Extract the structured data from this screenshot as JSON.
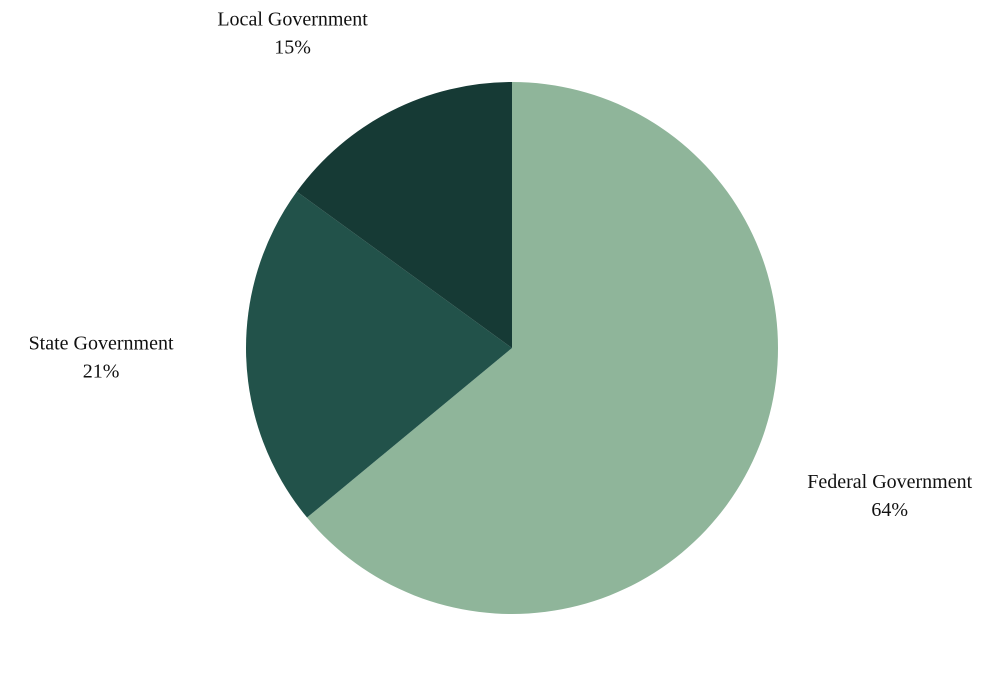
{
  "chart_data": {
    "type": "pie",
    "categories": [
      "Federal Government",
      "State Government",
      "Local Government"
    ],
    "values": [
      64,
      21,
      15
    ],
    "value_labels": [
      "64%",
      "21%",
      "15%"
    ],
    "colors": [
      "#8fb59a",
      "#22524a",
      "#163a35"
    ]
  }
}
